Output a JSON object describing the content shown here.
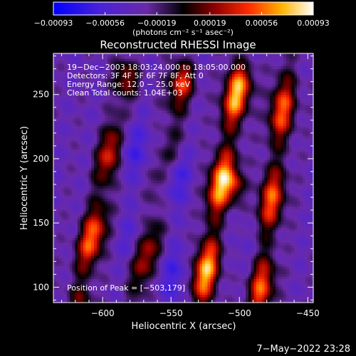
{
  "chart_data": {
    "type": "heatmap",
    "title": "Reconstructed RHESSI Image",
    "xlabel": "Heliocentric X (arcsec)",
    "ylabel": "Heliocentric Y (arcsec)",
    "xlim": [
      -636,
      -446
    ],
    "ylim": [
      88,
      282
    ],
    "x_ticks": [
      {
        "value": -600,
        "label": "−600"
      },
      {
        "value": -550,
        "label": "−550"
      },
      {
        "value": -500,
        "label": "−500"
      },
      {
        "value": -450,
        "label": "−450"
      }
    ],
    "y_ticks": [
      {
        "value": 100,
        "label": "100"
      },
      {
        "value": 150,
        "label": "150"
      },
      {
        "value": 200,
        "label": "200"
      },
      {
        "value": 250,
        "label": "250"
      }
    ],
    "colorbar": {
      "range": [
        -0.00093,
        0.00093
      ],
      "unit": "(photons cm⁻² s⁻¹ asec⁻²)",
      "ticks": [
        {
          "value": -0.00093,
          "label": "−0.00093"
        },
        {
          "value": -0.00056,
          "label": "−0.00056"
        },
        {
          "value": -0.00019,
          "label": "−0.00019"
        },
        {
          "value": 0.00019,
          "label": "0.00019"
        },
        {
          "value": 0.00056,
          "label": "0.00056"
        },
        {
          "value": 0.00093,
          "label": "0.00093"
        }
      ]
    },
    "annotations": [
      "19−Dec−2003 18:03:24.000 to 18:05:00.000",
      "Detectors: 3F 4F 5F 6F 7F 8F, Att 0",
      "Energy Range: 12.0 − 25.0 keV",
      "Clean     Total counts: 1.04E+03"
    ],
    "peak_label": "Position of Peak = [−503,179]",
    "peak": {
      "x": -503,
      "y": 179,
      "value": 0.00093
    },
    "bright_ridges": [
      {
        "x_top": -583,
        "y_top": 255,
        "x_bottom": -617,
        "y_bottom": 95,
        "value": 0.00072
      },
      {
        "x_top": -542,
        "y_top": 258,
        "x_bottom": -575,
        "y_bottom": 92,
        "value": 0.00063
      },
      {
        "x_top": -500,
        "y_top": 262,
        "x_bottom": -528,
        "y_bottom": 92,
        "value": 0.00088
      },
      {
        "x_top": -466,
        "y_top": 262,
        "x_bottom": -485,
        "y_bottom": 92,
        "value": 0.00068
      }
    ],
    "minima": [
      {
        "x": -583,
        "y": 212,
        "value": -0.00075
      },
      {
        "x": -552,
        "y": 190,
        "value": -0.00093
      },
      {
        "x": -575,
        "y": 135,
        "value": -0.00056
      },
      {
        "x": -548,
        "y": 108,
        "value": -0.0006
      },
      {
        "x": -498,
        "y": 130,
        "value": -0.0004
      }
    ]
  },
  "timestamp": "7−May−2022 23:28"
}
